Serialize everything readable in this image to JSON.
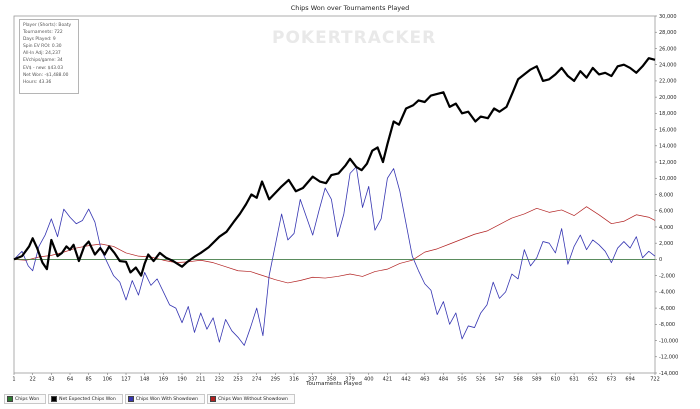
{
  "chart_data": {
    "type": "line",
    "title": "Chips Won over Tournaments Played",
    "xlabel": "Tournaments Played",
    "ylabel": "",
    "xlim": [
      1,
      722
    ],
    "ylim": [
      -14000,
      30000
    ],
    "x_ticks": [
      1,
      22,
      43,
      64,
      85,
      106,
      127,
      148,
      169,
      190,
      211,
      232,
      253,
      274,
      295,
      316,
      337,
      358,
      379,
      400,
      421,
      442,
      463,
      484,
      505,
      526,
      547,
      568,
      589,
      610,
      631,
      652,
      673,
      694,
      722
    ],
    "y_ticks": [
      -14000,
      -12000,
      -10000,
      -8000,
      -6000,
      -4000,
      -2000,
      0,
      2000,
      4000,
      6000,
      8000,
      10000,
      12000,
      14000,
      16000,
      18000,
      20000,
      22000,
      24000,
      26000,
      28000,
      30000
    ],
    "y_tick_labels": [
      "-14,000",
      "-12,000",
      "-10,000",
      "-8,000",
      "-6,000",
      "-4,000",
      "-2,000",
      "0",
      "2,000",
      "4,000",
      "6,000",
      "8,000",
      "10,000",
      "12,000",
      "14,000",
      "16,000",
      "18,000",
      "20,000",
      "22,000",
      "24,000",
      "26,000",
      "28,000",
      "30,000"
    ],
    "grid": false,
    "legend_position": "bottom-left",
    "series": [
      {
        "name": "Chips Won",
        "color": "#2e7d32",
        "x": [
          1,
          722
        ],
        "y": [
          0,
          0
        ]
      },
      {
        "name": "Net Expected Chips Won",
        "color": "#000000",
        "x": [
          1,
          10,
          18,
          22,
          27,
          33,
          38,
          43,
          50,
          55,
          60,
          64,
          68,
          74,
          80,
          85,
          92,
          98,
          103,
          108,
          114,
          120,
          127,
          132,
          138,
          144,
          148,
          152,
          158,
          165,
          172,
          180,
          190,
          196,
          205,
          211,
          220,
          232,
          240,
          248,
          255,
          262,
          268,
          274,
          280,
          288,
          295,
          302,
          310,
          318,
          326,
          337,
          345,
          352,
          358,
          366,
          374,
          379,
          386,
          392,
          398,
          404,
          410,
          416,
          421,
          428,
          434,
          442,
          450,
          456,
          463,
          470,
          477,
          484,
          491,
          498,
          505,
          512,
          520,
          526,
          534,
          541,
          547,
          555,
          562,
          568,
          575,
          582,
          589,
          596,
          603,
          610,
          617,
          624,
          631,
          638,
          645,
          652,
          659,
          666,
          673,
          680,
          687,
          694,
          701,
          708,
          715,
          722
        ],
        "y": [
          0,
          400,
          1600,
          2600,
          1400,
          -400,
          -1200,
          2400,
          400,
          800,
          1600,
          1200,
          1800,
          -200,
          1600,
          2200,
          600,
          1400,
          600,
          1600,
          800,
          -200,
          -300,
          -1600,
          -1000,
          -2000,
          -500,
          600,
          -200,
          800,
          200,
          -200,
          -900,
          -300,
          400,
          800,
          1500,
          2800,
          3400,
          4600,
          5600,
          6800,
          8000,
          7600,
          9600,
          7400,
          8200,
          9000,
          9800,
          8400,
          8800,
          10200,
          9600,
          9400,
          10400,
          10600,
          11600,
          12400,
          11400,
          11000,
          11800,
          13400,
          13800,
          12000,
          14200,
          17000,
          16600,
          18600,
          19000,
          19600,
          19400,
          20200,
          20400,
          20600,
          18800,
          19200,
          18000,
          18200,
          17000,
          17600,
          17400,
          18600,
          18200,
          18800,
          20600,
          22200,
          22800,
          23400,
          23800,
          22000,
          22200,
          22800,
          23600,
          22600,
          22000,
          23200,
          22400,
          23600,
          22800,
          23000,
          22600,
          23800,
          24000,
          23600,
          23000,
          23800,
          24800,
          24600
        ]
      },
      {
        "name": "Chips Won With Showdown",
        "color": "#3636b2",
        "x": [
          1,
          10,
          17,
          22,
          29,
          36,
          43,
          50,
          57,
          64,
          71,
          78,
          85,
          92,
          99,
          106,
          113,
          120,
          127,
          134,
          141,
          148,
          155,
          162,
          169,
          176,
          183,
          190,
          197,
          204,
          211,
          218,
          225,
          232,
          239,
          246,
          253,
          260,
          267,
          274,
          281,
          288,
          295,
          302,
          309,
          316,
          323,
          330,
          337,
          344,
          351,
          358,
          365,
          372,
          379,
          386,
          393,
          400,
          407,
          414,
          421,
          428,
          435,
          442,
          449,
          456,
          463,
          470,
          477,
          484,
          491,
          498,
          505,
          512,
          519,
          526,
          533,
          540,
          547,
          554,
          561,
          568,
          575,
          582,
          589,
          596,
          603,
          610,
          617,
          624,
          631,
          638,
          645,
          652,
          659,
          666,
          673,
          680,
          687,
          694,
          701,
          708,
          715,
          722
        ],
        "y": [
          0,
          1000,
          -800,
          -1400,
          1600,
          3000,
          5000,
          2800,
          6200,
          5200,
          4400,
          4800,
          6200,
          4600,
          1200,
          -400,
          -2000,
          -2800,
          -5000,
          -2600,
          -4400,
          -1600,
          -3200,
          -2400,
          -4000,
          -5600,
          -6000,
          -7800,
          -5800,
          -9000,
          -6600,
          -8600,
          -7200,
          -10200,
          -7400,
          -8800,
          -9600,
          -10600,
          -8400,
          -6000,
          -9400,
          -2000,
          1800,
          5600,
          2400,
          3200,
          7400,
          5200,
          3000,
          6000,
          8800,
          7400,
          2800,
          5600,
          10600,
          11400,
          6400,
          9000,
          3600,
          5000,
          10000,
          11200,
          8400,
          4400,
          400,
          -1400,
          -3000,
          -3800,
          -6800,
          -5200,
          -8000,
          -6600,
          -9800,
          -8200,
          -8400,
          -6600,
          -5600,
          -2800,
          -4800,
          -4000,
          -1800,
          -2400,
          1200,
          -800,
          200,
          2200,
          2000,
          800,
          3800,
          -600,
          1600,
          3000,
          1200,
          2400,
          1800,
          1000,
          -400,
          1400,
          2200,
          1400,
          2800,
          200,
          1000,
          400
        ]
      },
      {
        "name": "Chips Won Without Showdown",
        "color": "#b22222",
        "x": [
          1,
          15,
          29,
          43,
          57,
          71,
          85,
          99,
          113,
          127,
          141,
          155,
          169,
          183,
          197,
          211,
          225,
          239,
          253,
          267,
          281,
          295,
          309,
          323,
          337,
          351,
          365,
          379,
          393,
          407,
          421,
          435,
          449,
          463,
          477,
          491,
          505,
          519,
          533,
          547,
          561,
          575,
          589,
          603,
          617,
          631,
          645,
          659,
          673,
          687,
          701,
          715,
          722
        ],
        "y": [
          0,
          -100,
          300,
          500,
          900,
          1400,
          1700,
          1900,
          1600,
          800,
          400,
          300,
          -100,
          -400,
          -300,
          -100,
          -400,
          -900,
          -1400,
          -1500,
          -2000,
          -2500,
          -2900,
          -2600,
          -2200,
          -2300,
          -2100,
          -1800,
          -2100,
          -1500,
          -1200,
          -500,
          -100,
          900,
          1300,
          1900,
          2500,
          3100,
          3500,
          4300,
          5100,
          5600,
          6300,
          5800,
          6100,
          5400,
          6500,
          5500,
          4400,
          4700,
          5500,
          5200,
          4800
        ]
      }
    ]
  },
  "stats": [
    "Player (Shorts): Boaty",
    "Tournaments: 722",
    "Days Played: 9",
    "Spin EV ROI: 0.30",
    "All-In Adj: 24,237",
    "EVchips/game: 34",
    "EV$ - new: $43.03",
    "Net Won: -$1,488.00",
    "Hours: 43.36"
  ],
  "watermark": "POKERTRACKER"
}
